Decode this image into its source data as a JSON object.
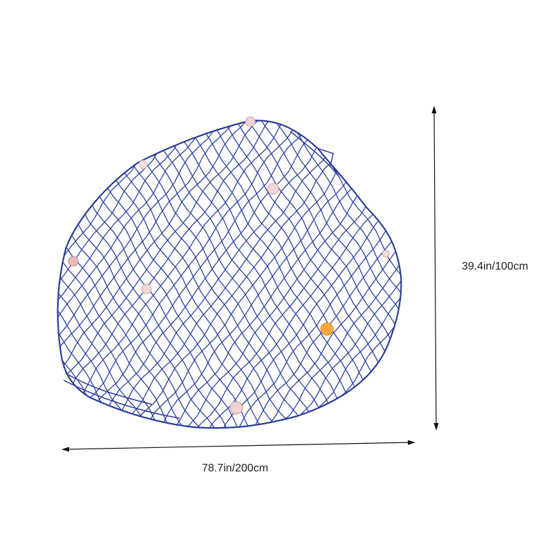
{
  "dimensions": {
    "height": "39.4in/100cm",
    "width": "78.7in/200cm"
  }
}
